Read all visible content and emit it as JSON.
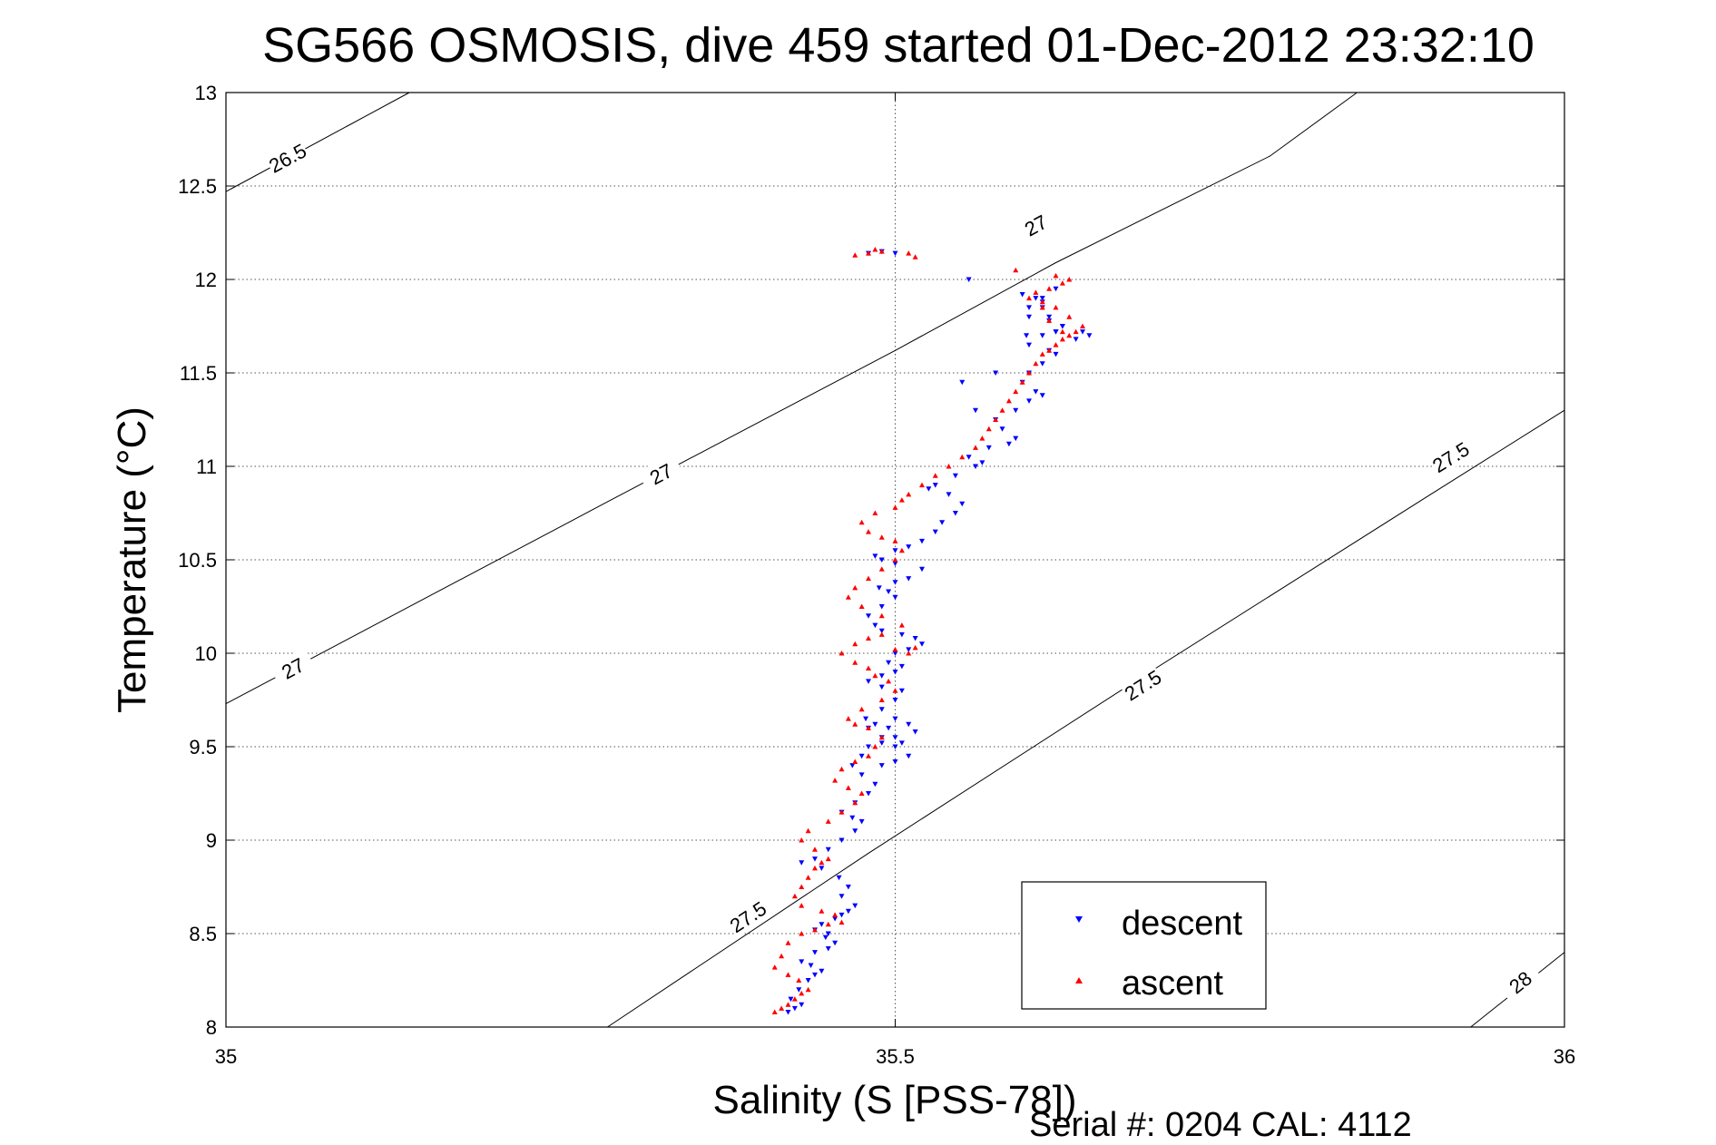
{
  "chart_data": {
    "type": "scatter",
    "title": "SG566 OSMOSIS, dive 459 started 01-Dec-2012 23:32:10",
    "xlabel": "Salinity (S [PSS-78])",
    "ylabel": "Temperature (°C)",
    "xlim": [
      35,
      36
    ],
    "ylim": [
      8,
      13
    ],
    "x_ticks": [
      {
        "value": 35,
        "label": "35"
      },
      {
        "value": 35.5,
        "label": "35.5"
      },
      {
        "value": 36,
        "label": "36"
      }
    ],
    "y_ticks": [
      {
        "value": 8,
        "label": "8"
      },
      {
        "value": 8.5,
        "label": "8.5"
      },
      {
        "value": 9,
        "label": "9"
      },
      {
        "value": 9.5,
        "label": "9.5"
      },
      {
        "value": 10,
        "label": "10"
      },
      {
        "value": 10.5,
        "label": "10.5"
      },
      {
        "value": 11,
        "label": "11"
      },
      {
        "value": 11.5,
        "label": "11.5"
      },
      {
        "value": 12,
        "label": "12"
      },
      {
        "value": 12.5,
        "label": "12.5"
      },
      {
        "value": 13,
        "label": "13"
      }
    ],
    "grid": true,
    "legend_position": "bottom-right",
    "isopycnals": [
      {
        "label": "26.5",
        "points": [
          [
            35.0,
            12.47
          ],
          [
            35.137,
            13.0
          ]
        ],
        "label_at": [
          [
            35.046,
            12.65
          ]
        ]
      },
      {
        "label": "27",
        "points": [
          [
            35.0,
            9.73
          ],
          [
            35.285,
            10.81
          ],
          [
            35.5,
            11.62
          ],
          [
            35.62,
            12.09
          ],
          [
            35.78,
            12.66
          ],
          [
            35.845,
            13.0
          ]
        ],
        "label_at": [
          [
            35.05,
            9.92
          ],
          [
            35.325,
            10.96
          ],
          [
            35.605,
            12.29
          ]
        ]
      },
      {
        "label": "27.5",
        "points": [
          [
            35.285,
            8.0
          ],
          [
            35.48,
            8.93
          ],
          [
            35.677,
            9.84
          ],
          [
            35.9,
            10.85
          ],
          [
            36.0,
            11.3
          ]
        ],
        "label_at": [
          [
            35.39,
            8.59
          ],
          [
            35.685,
            9.83
          ],
          [
            35.915,
            11.05
          ]
        ]
      },
      {
        "label": "28",
        "points": [
          [
            35.93,
            8.0
          ],
          [
            36.0,
            8.4
          ]
        ],
        "label_at": [
          [
            35.967,
            8.24
          ]
        ]
      }
    ],
    "series": [
      {
        "name": "descent",
        "color": "#0000ff",
        "marker": "triangle-down",
        "x": [
          35.42,
          35.425,
          35.43,
          35.422,
          35.428,
          35.435,
          35.44,
          35.445,
          35.437,
          35.43,
          35.44,
          35.45,
          35.455,
          35.448,
          35.45,
          35.44,
          35.445,
          35.455,
          35.46,
          35.465,
          35.47,
          35.46,
          35.465,
          35.458,
          35.445,
          35.43,
          35.44,
          35.45,
          35.46,
          35.47,
          35.475,
          35.468,
          35.46,
          35.47,
          35.48,
          35.485,
          35.475,
          35.468,
          35.475,
          35.48,
          35.49,
          35.5,
          35.495,
          35.485,
          35.478,
          35.49,
          35.5,
          35.505,
          35.49,
          35.48,
          35.49,
          35.5,
          35.505,
          35.495,
          35.5,
          35.51,
          35.52,
          35.515,
          35.505,
          35.49,
          35.485,
          35.48,
          35.49,
          35.5,
          35.495,
          35.488,
          35.5,
          35.51,
          35.52,
          35.5,
          35.49,
          35.485,
          35.48,
          35.49,
          35.5,
          35.51,
          35.5,
          35.49,
          35.5,
          35.51,
          35.515,
          35.505,
          35.5,
          35.51,
          35.52,
          35.53,
          35.535,
          35.545,
          35.55,
          35.54,
          35.525,
          35.53,
          35.545,
          35.56,
          35.565,
          35.555,
          35.57,
          35.585,
          35.59,
          35.58,
          35.575,
          35.59,
          35.6,
          35.61,
          35.605,
          35.595,
          35.6,
          35.61,
          35.62,
          35.615,
          35.6,
          35.61,
          35.62,
          35.625,
          35.615,
          35.6,
          35.61,
          35.625,
          35.64,
          35.645,
          35.635,
          35.62,
          35.615,
          35.6,
          35.605,
          35.595,
          35.61,
          35.62,
          35.61,
          35.598,
          35.575,
          35.56,
          35.55,
          35.555,
          35.5,
          35.49,
          35.48
        ],
        "y": [
          8.08,
          8.1,
          8.12,
          8.15,
          8.2,
          8.25,
          8.28,
          8.3,
          8.33,
          8.35,
          8.4,
          8.42,
          8.45,
          8.48,
          8.5,
          8.52,
          8.55,
          8.58,
          8.6,
          8.62,
          8.65,
          8.7,
          8.75,
          8.8,
          8.85,
          8.88,
          8.9,
          8.95,
          9.0,
          9.05,
          9.1,
          9.12,
          9.15,
          9.2,
          9.25,
          9.3,
          9.35,
          9.4,
          9.45,
          9.5,
          9.52,
          9.55,
          9.6,
          9.62,
          9.65,
          9.7,
          9.75,
          9.8,
          9.82,
          9.85,
          9.88,
          9.9,
          9.93,
          9.95,
          10.0,
          10.02,
          10.05,
          10.08,
          10.1,
          10.12,
          10.15,
          10.2,
          10.25,
          10.3,
          10.33,
          10.35,
          10.38,
          10.4,
          10.45,
          10.48,
          10.5,
          10.52,
          9.6,
          9.55,
          9.5,
          9.45,
          9.42,
          9.4,
          9.65,
          9.62,
          9.58,
          9.52,
          10.55,
          10.57,
          10.6,
          10.65,
          10.7,
          10.75,
          10.8,
          10.85,
          10.88,
          10.9,
          10.95,
          11.0,
          11.02,
          11.05,
          11.1,
          11.12,
          11.15,
          11.2,
          11.25,
          11.3,
          11.35,
          11.38,
          11.4,
          11.45,
          11.5,
          11.55,
          11.6,
          11.62,
          11.65,
          11.7,
          11.72,
          11.75,
          11.78,
          11.8,
          11.85,
          11.75,
          11.72,
          11.7,
          11.68,
          11.72,
          11.8,
          11.85,
          11.9,
          11.92,
          11.88,
          11.95,
          11.9,
          11.7,
          11.5,
          11.3,
          11.45,
          12.0,
          12.14,
          12.15,
          12.14
        ]
      },
      {
        "name": "ascent",
        "color": "#ff0000",
        "marker": "triangle-up",
        "x": [
          35.41,
          35.415,
          35.42,
          35.425,
          35.43,
          35.435,
          35.428,
          35.42,
          35.41,
          35.415,
          35.42,
          35.43,
          35.44,
          35.45,
          35.46,
          35.455,
          35.445,
          35.43,
          35.425,
          35.43,
          35.435,
          35.44,
          35.445,
          35.45,
          35.44,
          35.43,
          35.435,
          35.45,
          35.46,
          35.47,
          35.475,
          35.465,
          35.455,
          35.46,
          35.47,
          35.48,
          35.485,
          35.49,
          35.48,
          35.47,
          35.465,
          35.475,
          35.49,
          35.5,
          35.495,
          35.485,
          35.48,
          35.47,
          35.46,
          35.47,
          35.48,
          35.49,
          35.5,
          35.51,
          35.515,
          35.505,
          35.49,
          35.475,
          35.465,
          35.47,
          35.48,
          35.49,
          35.5,
          35.505,
          35.5,
          35.49,
          35.48,
          35.475,
          35.485,
          35.5,
          35.505,
          35.51,
          35.52,
          35.53,
          35.54,
          35.55,
          35.56,
          35.565,
          35.57,
          35.575,
          35.58,
          35.585,
          35.59,
          35.595,
          35.6,
          35.605,
          35.61,
          35.615,
          35.62,
          35.625,
          35.63,
          35.635,
          35.64,
          35.63,
          35.62,
          35.61,
          35.6,
          35.605,
          35.615,
          35.625,
          35.63,
          35.62,
          35.61,
          35.615,
          35.625,
          35.59,
          35.47,
          35.48,
          35.49,
          35.485,
          35.51,
          35.515
        ],
        "y": [
          8.08,
          8.1,
          8.12,
          8.15,
          8.18,
          8.2,
          8.25,
          8.28,
          8.32,
          8.38,
          8.45,
          8.5,
          8.52,
          8.55,
          8.56,
          8.6,
          8.62,
          8.65,
          8.7,
          8.75,
          8.8,
          8.85,
          8.88,
          8.9,
          8.95,
          9.0,
          9.05,
          9.1,
          9.15,
          9.2,
          9.25,
          9.28,
          9.32,
          9.38,
          9.42,
          9.45,
          9.5,
          9.55,
          9.6,
          9.62,
          9.65,
          9.7,
          9.75,
          9.8,
          9.85,
          9.88,
          9.92,
          9.95,
          10.0,
          10.05,
          10.08,
          10.1,
          10.02,
          10.0,
          10.03,
          10.15,
          10.2,
          10.25,
          10.3,
          10.35,
          10.4,
          10.45,
          10.5,
          10.55,
          10.6,
          10.62,
          10.65,
          10.7,
          10.75,
          10.78,
          10.82,
          10.85,
          10.9,
          10.95,
          11.0,
          11.05,
          11.1,
          11.15,
          11.2,
          11.25,
          11.3,
          11.35,
          11.4,
          11.45,
          11.5,
          11.55,
          11.6,
          11.62,
          11.65,
          11.68,
          11.7,
          11.72,
          11.75,
          11.8,
          11.85,
          11.88,
          11.9,
          11.93,
          11.95,
          11.98,
          12.0,
          12.02,
          11.85,
          11.78,
          11.72,
          12.05,
          12.13,
          12.14,
          12.15,
          12.16,
          12.14,
          12.12
        ]
      }
    ]
  },
  "footer": {
    "serial_text": "Serial #: 0204  CAL: 4112"
  }
}
